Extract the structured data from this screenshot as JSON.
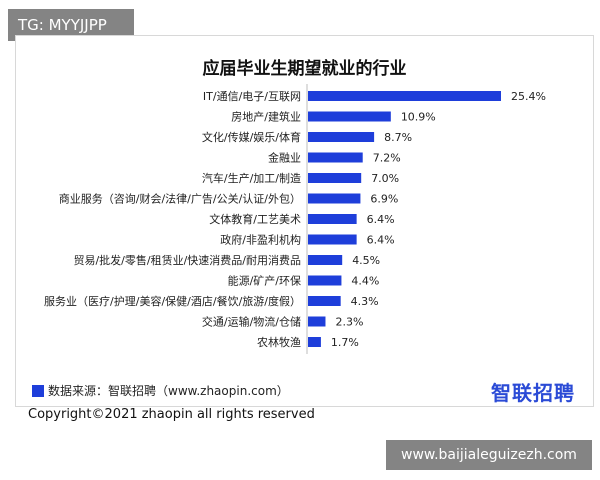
{
  "watermark_top": "TG: MYYJJPP",
  "watermark_bottom": "www.baijialeguizezh.com",
  "copyright": "Copyright©2021 zhaopin all rights reserved",
  "source_text": "数据来源：智联招聘（www.zhaopin.com）",
  "brand_logo_text": "智联招聘",
  "colors": {
    "bar": "#1e3eda",
    "brand": "#2b4bd6"
  },
  "chart_data": {
    "type": "bar",
    "orientation": "horizontal",
    "title": "应届毕业生期望就业的行业",
    "categories": [
      "IT/通信/电子/互联网",
      "房地产/建筑业",
      "文化/传媒/娱乐/体育",
      "金融业",
      "汽车/生产/加工/制造",
      "商业服务（咨询/财会/法律/广告/公关/认证/外包）",
      "文体教育/工艺美术",
      "政府/非盈利机构",
      "贸易/批发/零售/租赁业/快速消费品/耐用消费品",
      "能源/矿产/环保",
      "服务业（医疗/护理/美容/保健/酒店/餐饮/旅游/度假）",
      "交通/运输/物流/仓储",
      "农林牧渔"
    ],
    "values": [
      25.4,
      10.9,
      8.7,
      7.2,
      7.0,
      6.9,
      6.4,
      6.4,
      4.5,
      4.4,
      4.3,
      2.3,
      1.7
    ],
    "value_labels": [
      "25.4%",
      "10.9%",
      "8.7%",
      "7.2%",
      "7.0%",
      "6.9%",
      "6.4%",
      "6.4%",
      "4.5%",
      "4.4%",
      "4.3%",
      "2.3%",
      "1.7%"
    ],
    "xlabel": "",
    "ylabel": "",
    "xlim": [
      0,
      25.4
    ],
    "grid": false,
    "legend": "none"
  }
}
